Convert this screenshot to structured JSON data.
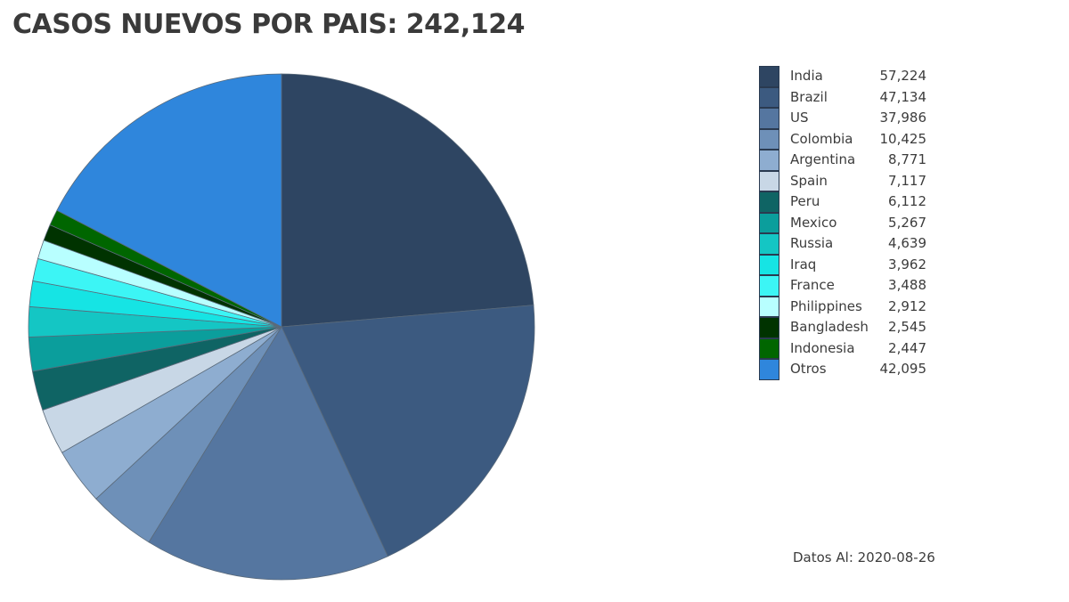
{
  "chart_data": {
    "type": "pie",
    "title": "CASOS NUEVOS POR PAIS: 242,124",
    "categories": [
      "India",
      "Brazil",
      "US",
      "Colombia",
      "Argentina",
      "Spain",
      "Peru",
      "Mexico",
      "Russia",
      "Iraq",
      "France",
      "Philippines",
      "Bangladesh",
      "Indonesia",
      "Otros"
    ],
    "values": [
      57224,
      47134,
      37986,
      10425,
      8771,
      7117,
      6112,
      5267,
      4639,
      3962,
      3488,
      2912,
      2545,
      2447,
      42095
    ],
    "value_labels": [
      "57,224",
      "47,134",
      "37,986",
      "10,425",
      "8,771",
      "7,117",
      "6,112",
      "5,267",
      "4,639",
      "3,962",
      "3,488",
      "2,912",
      "2,545",
      "2,447",
      "42,095"
    ],
    "colors": [
      "#2e4562",
      "#3c5a80",
      "#5576a0",
      "#6e90b8",
      "#8eadd0",
      "#c8d7e6",
      "#0f6464",
      "#0b9e9c",
      "#14c6c4",
      "#16e4e4",
      "#3cf5f5",
      "#b8ffff",
      "#003300",
      "#006600",
      "#2f86dc"
    ],
    "legend_position": "right",
    "footer": "Datos Al: 2020-08-26"
  }
}
